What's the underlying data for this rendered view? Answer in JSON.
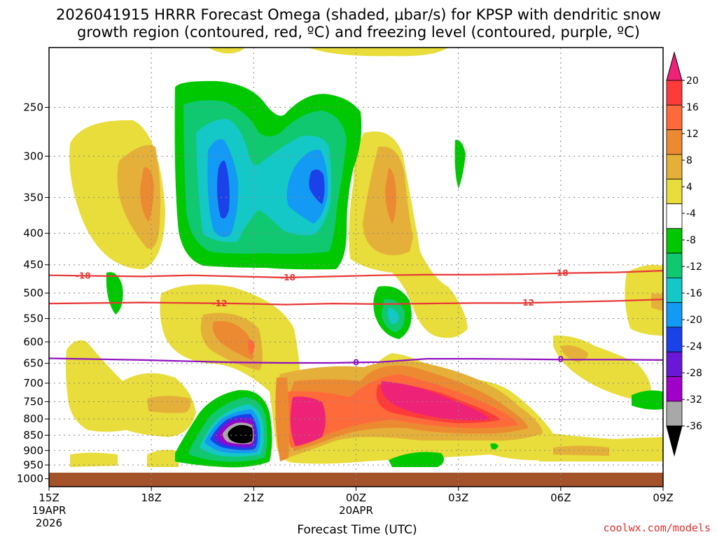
{
  "chart_data": {
    "type": "heatmap",
    "title_line1": "2026041915 HRRR Forecast Omega (shaded, μbar/s) for KPSP with dendritic snow",
    "title_line2": "growth region (contoured, red, ºC) and freezing level (contoured, purple, ºC)",
    "xlabel": "Forecast Time (UTC)",
    "x_ticks": [
      "15Z",
      "18Z",
      "21Z",
      "00Z",
      "03Z",
      "06Z",
      "09Z"
    ],
    "x_sublabels": [
      {
        "tick": "15Z",
        "line2": "19APR",
        "line3": "2026"
      },
      {
        "tick": "00Z",
        "line2": "20APR",
        "line3": ""
      }
    ],
    "y_ticks": [
      250,
      300,
      350,
      400,
      450,
      500,
      550,
      600,
      650,
      700,
      750,
      800,
      850,
      900,
      950,
      1000
    ],
    "y_range_hpa": [
      200,
      1030
    ],
    "x_range_hours": [
      0,
      18
    ],
    "colorbar": {
      "labels": [
        "20",
        "16",
        "12",
        "8",
        "4",
        "-4",
        "-8",
        "-12",
        "-16",
        "-20",
        "-24",
        "-28",
        "-32",
        "-36"
      ],
      "colors": [
        "#ee2277",
        "#ff3a3a",
        "#ff6a3a",
        "#ec8a32",
        "#e5b03a",
        "#e8dd3a",
        "#ffffff",
        "#00c800",
        "#10c870",
        "#14c8c8",
        "#129af4",
        "#1a42e8",
        "#6a18d8",
        "#a000c8",
        "#a8a8a8",
        "#000000"
      ]
    },
    "contours": {
      "dendritic": [
        {
          "label": "-18",
          "level_hpa": [
            468,
            469,
            470,
            468,
            470,
            472,
            470,
            468,
            467,
            467,
            466,
            464,
            463,
            460
          ],
          "label_positions_hours": [
            1,
            7,
            15
          ],
          "color": "#e83838"
        },
        {
          "label": "-12",
          "level_hpa": [
            520,
            519,
            518,
            519,
            520,
            522,
            520,
            521,
            520,
            519,
            519,
            517,
            515,
            512
          ],
          "label_positions_hours": [
            5,
            14
          ],
          "color": "#e83838"
        }
      ],
      "freezing": [
        {
          "label": "0",
          "level_hpa": [
            638,
            640,
            642,
            645,
            648,
            649,
            649,
            647,
            639,
            639,
            640,
            641,
            641,
            642
          ],
          "label_positions_hours": [
            9,
            15
          ],
          "color": "#9010c0"
        }
      ]
    },
    "omega_features": [
      {
        "name": "upper ascent core 1",
        "time_h": 5,
        "pressure_hpa": 345,
        "value": -22
      },
      {
        "name": "upper ascent core 2",
        "time_h": 8,
        "pressure_hpa": 350,
        "value": -20
      },
      {
        "name": "low-level ascent core",
        "time_h": 6,
        "pressure_hpa": 860,
        "value": -36
      },
      {
        "name": "low-level descent max",
        "time_h": 10,
        "pressure_hpa": 760,
        "value": 20
      },
      {
        "name": "low-level descent max 2",
        "time_h": 8,
        "pressure_hpa": 830,
        "value": 20
      }
    ]
  },
  "credit": "coolwx.com/models"
}
